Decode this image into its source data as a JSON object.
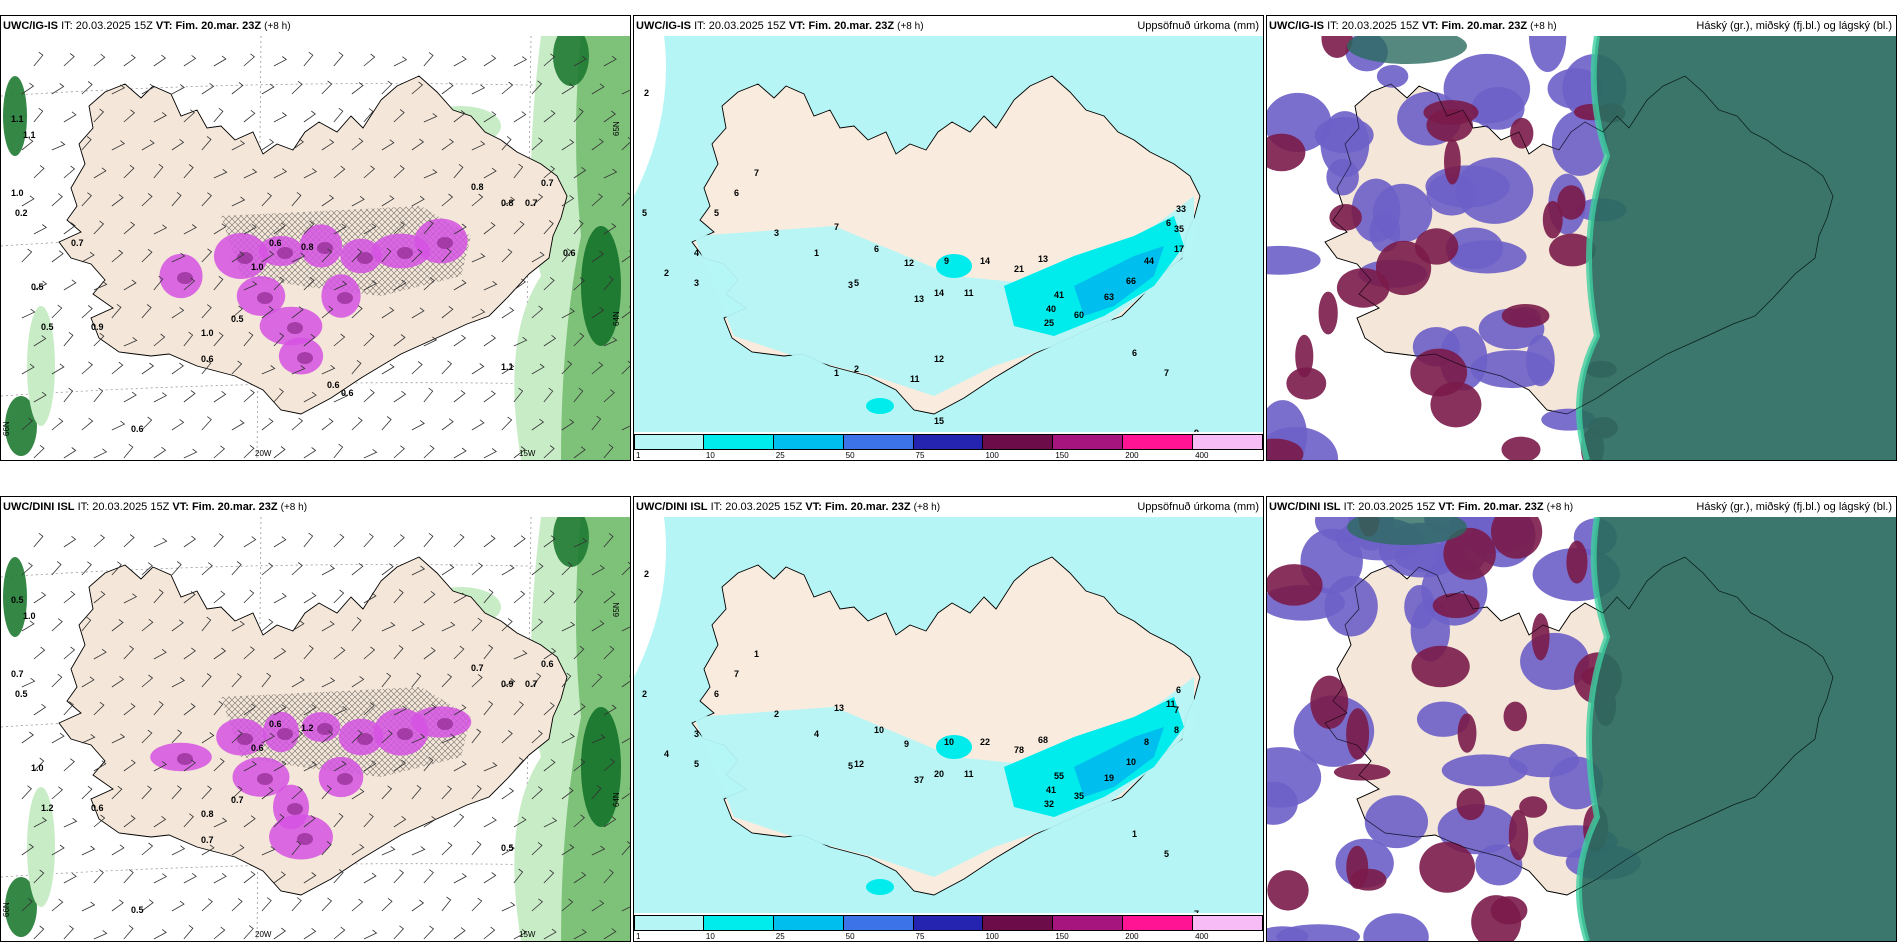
{
  "panels": [
    {
      "id": "igis-weather",
      "model": "UWC/IG-IS",
      "it_label": "IT:",
      "it_value": "20.03.2025 15Z",
      "vt_label": "VT:",
      "vt_value": "Fim. 20.mar. 23Z",
      "lead": "(+8 h)",
      "right_title": "",
      "axis_labels": [
        "20W",
        "15W",
        "65N",
        "64N",
        "66N"
      ],
      "values": [
        "1.1",
        "1.1",
        "0.5",
        "0.5",
        "1.0",
        "0.2",
        "0.6",
        "0.6",
        "0.8",
        "0.8",
        "0.7",
        "0.7",
        "1.0",
        "1.0",
        "0.6",
        "0.8",
        "0.5",
        "0.9",
        "1.1",
        "0.6",
        "0.6",
        "0.7",
        "0.6"
      ],
      "colors": {
        "land": "#f4e6d8",
        "sea": "#ffffff",
        "precip_light": "#c8ecc6",
        "precip_mid": "#7ec27a",
        "precip_dark": "#1f7a32",
        "snow": "#d552e3"
      }
    },
    {
      "id": "igis-precip",
      "model": "UWC/IG-IS",
      "it_label": "IT:",
      "it_value": "20.03.2025 15Z",
      "vt_label": "VT:",
      "vt_value": "Fim. 20.mar. 23Z",
      "lead": "(+8 h)",
      "right_title": "Uppsöfnuð úrkoma (mm)",
      "values": [
        "2",
        "5",
        "2",
        "3",
        "4",
        "5",
        "6",
        "7",
        "3",
        "1",
        "3",
        "6",
        "5",
        "7",
        "12",
        "14",
        "9",
        "11",
        "13",
        "14",
        "21",
        "13",
        "41",
        "40",
        "25",
        "60",
        "63",
        "66",
        "44",
        "33",
        "35",
        "17",
        "6",
        "6",
        "7",
        "9",
        "15",
        "11",
        "12",
        "2",
        "1"
      ],
      "colorbar_ticks": [
        "1",
        "10",
        "25",
        "50",
        "75",
        "100",
        "150",
        "200",
        "400"
      ],
      "colorbar_colors": [
        "#b5f5f5",
        "#00ebeb",
        "#00bfee",
        "#3c73e8",
        "#2424b0",
        "#6c0d4a",
        "#a6157d",
        "#ff1493",
        "#f7bbf5"
      ],
      "colors": {
        "land": "#f9ecdf",
        "sea": "#ffffff",
        "precip_light": "#b5f5f5",
        "precip_mid": "#00ebeb",
        "precip_dark": "#00bfee"
      }
    },
    {
      "id": "igis-cloud",
      "model": "UWC/IG-IS",
      "it_label": "IT:",
      "it_value": "20.03.2025 15Z",
      "vt_label": "VT:",
      "vt_value": "Fim. 20.mar. 23Z",
      "lead": "(+8 h)",
      "right_title": "Háský (gr.), miðský (fj.bl.) og lágský (bl.)",
      "colors": {
        "land": "#f4e6d8",
        "low": "#6d5fc8",
        "mid": "#7a1b4a",
        "high": "#2a6b60",
        "edge": "#3fd0a0"
      }
    },
    {
      "id": "dini-weather",
      "model": "UWC/DINI ISL",
      "it_label": "IT:",
      "it_value": "20.03.2025 15Z",
      "vt_label": "VT:",
      "vt_value": "Fim. 20.mar. 23Z",
      "lead": "(+8 h)",
      "right_title": "",
      "axis_labels": [
        "20W",
        "15W",
        "65N",
        "64N",
        "66N"
      ],
      "values": [
        "0.5",
        "1.0",
        "1.0",
        "1.2",
        "0.7",
        "0.5",
        "0.5",
        "0.7",
        "0.7",
        "0.9",
        "0.7",
        "0.6",
        "0.8",
        "0.6",
        "0.6",
        "1.2",
        "0.7",
        "0.6",
        "0.5"
      ],
      "colors": {
        "land": "#f4e6d8",
        "sea": "#ffffff",
        "precip_light": "#c8ecc6",
        "precip_mid": "#7ec27a",
        "precip_dark": "#1f7a32",
        "snow": "#d552e3"
      }
    },
    {
      "id": "dini-precip",
      "model": "UWC/DINI ISL",
      "it_label": "IT:",
      "it_value": "20.03.2025 15Z",
      "vt_label": "VT:",
      "vt_value": "Fim. 20.mar. 23Z",
      "lead": "(+8 h)",
      "right_title": "Uppsöfnuð úrkoma (mm)",
      "values": [
        "2",
        "2",
        "4",
        "5",
        "3",
        "6",
        "7",
        "1",
        "2",
        "4",
        "5",
        "10",
        "12",
        "13",
        "9",
        "20",
        "10",
        "11",
        "37",
        "22",
        "78",
        "68",
        "55",
        "41",
        "32",
        "35",
        "19",
        "10",
        "8",
        "6",
        "7",
        "8",
        "11",
        "1",
        "5",
        "7"
      ],
      "colorbar_ticks": [
        "1",
        "10",
        "25",
        "50",
        "75",
        "100",
        "150",
        "200",
        "400"
      ],
      "colorbar_colors": [
        "#b5f5f5",
        "#00ebeb",
        "#00bfee",
        "#3c73e8",
        "#2424b0",
        "#6c0d4a",
        "#a6157d",
        "#ff1493",
        "#f7bbf5"
      ],
      "colors": {
        "land": "#f9ecdf",
        "sea": "#ffffff",
        "precip_light": "#b5f5f5",
        "precip_mid": "#00ebeb",
        "precip_dark": "#00bfee"
      }
    },
    {
      "id": "dini-cloud",
      "model": "UWC/DINI ISL",
      "it_label": "IT:",
      "it_value": "20.03.2025 15Z",
      "vt_label": "VT:",
      "vt_value": "Fim. 20.mar. 23Z",
      "lead": "(+8 h)",
      "right_title": "Háský (gr.), miðský (fj.bl.) og lágský (bl.)",
      "colors": {
        "land": "#f4e6d8",
        "low": "#6d5fc8",
        "mid": "#7a1b4a",
        "high": "#2a6b60",
        "edge": "#3fd0a0"
      }
    }
  ]
}
